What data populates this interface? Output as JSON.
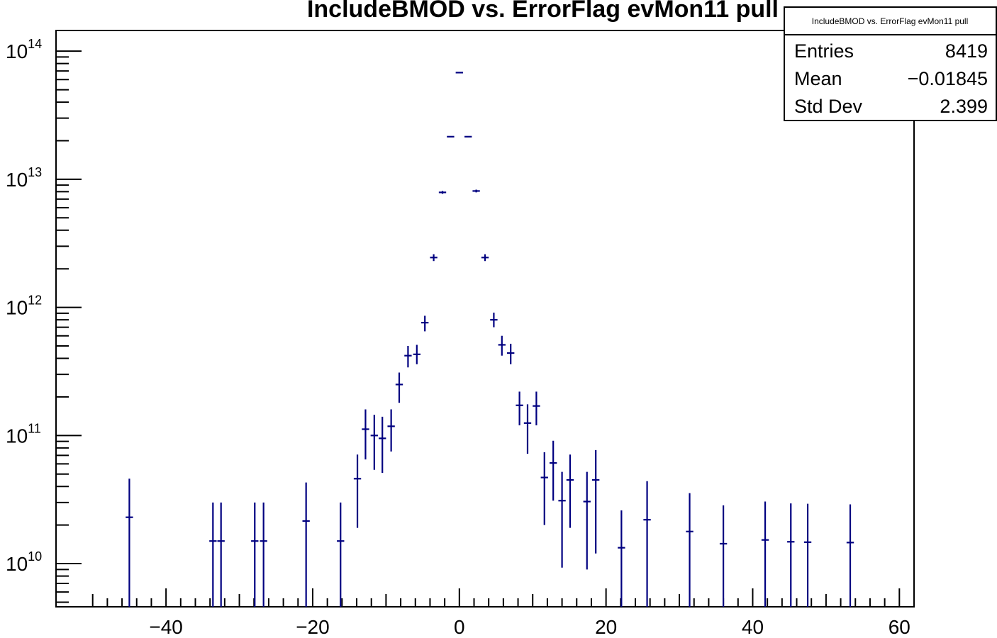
{
  "chart_data": {
    "type": "scatter",
    "title": "IncludeBMOD vs. ErrorFlag evMon11 pull",
    "xlabel": "",
    "ylabel": "",
    "xlim": [
      -55,
      62
    ],
    "ylim": [
      4600000000.0,
      145000000000000.0
    ],
    "y_scale": "log",
    "grid": false,
    "x_ticks": [
      -40,
      -20,
      0,
      20,
      40,
      60
    ],
    "x_tick_labels": [
      "−40",
      "−20",
      "0",
      "20",
      "40",
      "60"
    ],
    "y_ticks": [
      {
        "value": 10000000000.0,
        "base": "10",
        "exp": "10"
      },
      {
        "value": 100000000000.0,
        "base": "10",
        "exp": "11"
      },
      {
        "value": 1000000000000.0,
        "base": "10",
        "exp": "12"
      },
      {
        "value": 10000000000000.0,
        "base": "10",
        "exp": "13"
      },
      {
        "value": 100000000000000.0,
        "base": "10",
        "exp": "14"
      }
    ],
    "marker_color": "#000080",
    "bin_half_width": 0.5,
    "points": [
      {
        "x": -45.0,
        "y": 23000000000.0,
        "lo": 0.0,
        "hi": 46000000000.0
      },
      {
        "x": -33.6,
        "y": 15000000000.0,
        "lo": 0.0,
        "hi": 30000000000.0
      },
      {
        "x": -32.5,
        "y": 15000000000.0,
        "lo": 0.0,
        "hi": 30000000000.0
      },
      {
        "x": -27.9,
        "y": 15000000000.0,
        "lo": 0.0,
        "hi": 30000000000.0
      },
      {
        "x": -26.7,
        "y": 15000000000.0,
        "lo": 0.0,
        "hi": 30000000000.0
      },
      {
        "x": -20.9,
        "y": 21500000000.0,
        "lo": 0.0,
        "hi": 43000000000.0
      },
      {
        "x": -16.2,
        "y": 15000000000.0,
        "lo": 0.0,
        "hi": 30000000000.0
      },
      {
        "x": -13.9,
        "y": 46000000000.0,
        "lo": 19000000000.0,
        "hi": 71000000000.0
      },
      {
        "x": -12.8,
        "y": 112000000000.0,
        "lo": 65000000000.0,
        "hi": 160000000000.0
      },
      {
        "x": -11.6,
        "y": 100000000000.0,
        "lo": 54000000000.0,
        "hi": 145000000000.0
      },
      {
        "x": -10.5,
        "y": 95000000000.0,
        "lo": 51000000000.0,
        "hi": 140000000000.0
      },
      {
        "x": -9.3,
        "y": 118000000000.0,
        "lo": 75000000000.0,
        "hi": 160000000000.0
      },
      {
        "x": -8.2,
        "y": 250000000000.0,
        "lo": 180000000000.0,
        "hi": 310000000000.0
      },
      {
        "x": -7.0,
        "y": 420000000000.0,
        "lo": 340000000000.0,
        "hi": 500000000000.0
      },
      {
        "x": -5.8,
        "y": 430000000000.0,
        "lo": 360000000000.0,
        "hi": 510000000000.0
      },
      {
        "x": -4.7,
        "y": 760000000000.0,
        "lo": 650000000000.0,
        "hi": 860000000000.0
      },
      {
        "x": -3.5,
        "y": 2450000000000.0,
        "lo": 2300000000000.0,
        "hi": 2600000000000.0
      },
      {
        "x": -2.3,
        "y": 7900000000000.0,
        "lo": 7700000000000.0,
        "hi": 8100000000000.0
      },
      {
        "x": -1.2,
        "y": 21500000000000.0,
        "lo": 21300000000000.0,
        "hi": 21700000000000.0
      },
      {
        "x": 0.0,
        "y": 68000000000000.0,
        "lo": 67800000000000.0,
        "hi": 68200000000000.0
      },
      {
        "x": 1.2,
        "y": 21500000000000.0,
        "lo": 21300000000000.0,
        "hi": 21700000000000.0
      },
      {
        "x": 2.3,
        "y": 8100000000000.0,
        "lo": 7900000000000.0,
        "hi": 8300000000000.0
      },
      {
        "x": 3.5,
        "y": 2450000000000.0,
        "lo": 2300000000000.0,
        "hi": 2600000000000.0
      },
      {
        "x": 4.7,
        "y": 800000000000.0,
        "lo": 700000000000.0,
        "hi": 910000000000.0
      },
      {
        "x": 5.8,
        "y": 510000000000.0,
        "lo": 420000000000.0,
        "hi": 600000000000.0
      },
      {
        "x": 7.0,
        "y": 440000000000.0,
        "lo": 360000000000.0,
        "hi": 520000000000.0
      },
      {
        "x": 8.2,
        "y": 172000000000.0,
        "lo": 120000000000.0,
        "hi": 220000000000.0
      },
      {
        "x": 9.3,
        "y": 125000000000.0,
        "lo": 72000000000.0,
        "hi": 175000000000.0
      },
      {
        "x": 10.5,
        "y": 170000000000.0,
        "lo": 120000000000.0,
        "hi": 220000000000.0
      },
      {
        "x": 11.6,
        "y": 47000000000.0,
        "lo": 20000000000.0,
        "hi": 74000000000.0
      },
      {
        "x": 12.8,
        "y": 61000000000.0,
        "lo": 31000000000.0,
        "hi": 91000000000.0
      },
      {
        "x": 14.0,
        "y": 31000000000.0,
        "lo": 9300000000.0,
        "hi": 52000000000.0
      },
      {
        "x": 15.1,
        "y": 45000000000.0,
        "lo": 19000000000.0,
        "hi": 71000000000.0
      },
      {
        "x": 17.4,
        "y": 30500000000.0,
        "lo": 9000000000.0,
        "hi": 52000000000.0
      },
      {
        "x": 18.6,
        "y": 45000000000.0,
        "lo": 12000000000.0,
        "hi": 77000000000.0
      },
      {
        "x": 22.1,
        "y": 13300000000.0,
        "lo": 0.0,
        "hi": 26000000000.0
      },
      {
        "x": 25.6,
        "y": 22000000000.0,
        "lo": 0.0,
        "hi": 44000000000.0
      },
      {
        "x": 31.4,
        "y": 17800000000.0,
        "lo": 0.0,
        "hi": 35500000000.0
      },
      {
        "x": 36.0,
        "y": 14300000000.0,
        "lo": 0.0,
        "hi": 28500000000.0
      },
      {
        "x": 41.7,
        "y": 15300000000.0,
        "lo": 0.0,
        "hi": 30500000000.0
      },
      {
        "x": 45.2,
        "y": 14800000000.0,
        "lo": 0.0,
        "hi": 29500000000.0
      },
      {
        "x": 47.5,
        "y": 14700000000.0,
        "lo": 0.0,
        "hi": 29300000000.0
      },
      {
        "x": 53.3,
        "y": 14600000000.0,
        "lo": 0.0,
        "hi": 29000000000.0
      }
    ]
  },
  "stats_box": {
    "header": "IncludeBMOD vs. ErrorFlag evMon11 pull",
    "rows": [
      {
        "label": "Entries",
        "value": "8419"
      },
      {
        "label": "Mean",
        "value": "−0.01845"
      },
      {
        "label": "Std Dev",
        "value": "2.399"
      }
    ]
  }
}
